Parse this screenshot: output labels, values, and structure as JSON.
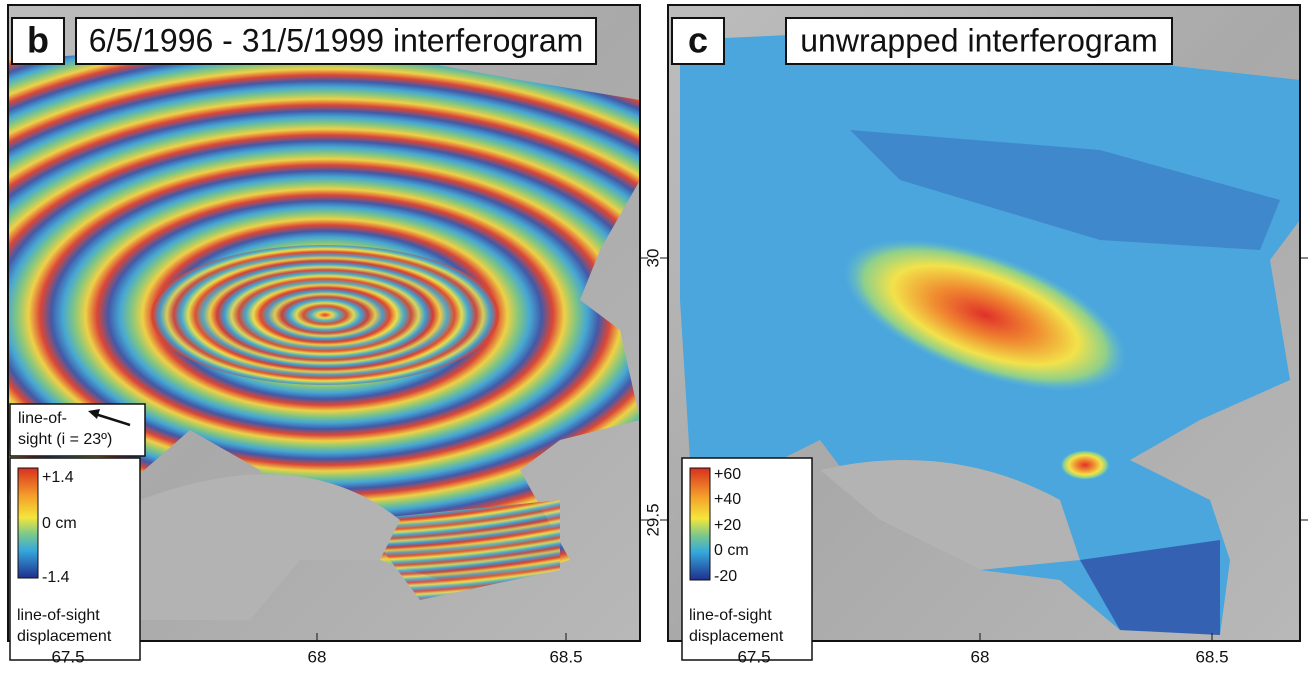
{
  "panels": [
    {
      "label": "b",
      "title": "6/5/1996 - 31/5/1999 interferogram",
      "look_direction": [
        "line-of-",
        "sight (i = 23º)"
      ],
      "colorbar": {
        "ticks": [
          "+1.4",
          "0 cm",
          "-1.4"
        ],
        "title": [
          "line-of-sight",
          "displacement"
        ]
      }
    },
    {
      "label": "c",
      "title": "unwrapped interferogram",
      "colorbar": {
        "ticks": [
          "+60",
          "+40",
          "+20",
          "0 cm",
          "-20"
        ],
        "title": [
          "line-of-sight",
          "displacement"
        ]
      }
    }
  ],
  "x_axis": {
    "ticks": [
      67.5,
      68,
      68.5
    ]
  },
  "y_axis": {
    "ticks": [
      30,
      29.5
    ]
  }
}
